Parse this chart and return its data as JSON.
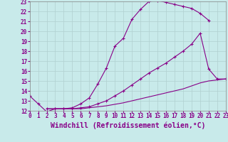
{
  "background_color": "#c8eaea",
  "grid_color": "#b0d0d0",
  "line_color": "#880088",
  "marker": "+",
  "xlabel": "Windchill (Refroidissement éolien,°C)",
  "xlabel_fontsize": 7,
  "tick_fontsize": 5.5,
  "xlim": [
    0,
    23
  ],
  "ylim": [
    12,
    23
  ],
  "xticks": [
    0,
    1,
    2,
    3,
    4,
    5,
    6,
    7,
    8,
    9,
    10,
    11,
    12,
    13,
    14,
    15,
    16,
    17,
    18,
    19,
    20,
    21,
    22,
    23
  ],
  "yticks": [
    12,
    13,
    14,
    15,
    16,
    17,
    18,
    19,
    20,
    21,
    22,
    23
  ],
  "curve1_x": [
    0,
    1,
    2,
    3,
    4,
    5,
    6,
    7,
    8,
    9,
    10,
    11,
    12,
    13,
    14,
    15,
    16,
    17,
    18,
    19,
    20,
    21
  ],
  "curve1_y": [
    13.5,
    12.7,
    11.9,
    12.2,
    12.2,
    12.3,
    12.7,
    13.3,
    14.7,
    16.3,
    18.5,
    19.3,
    21.2,
    22.2,
    23.0,
    23.1,
    22.9,
    22.7,
    22.5,
    22.3,
    21.8,
    21.1
  ],
  "curve2_x": [
    2,
    3,
    4,
    5,
    6,
    7,
    8,
    9,
    10,
    11,
    12,
    13,
    14,
    15,
    16,
    17,
    18,
    19,
    20,
    21,
    22,
    23
  ],
  "curve2_y": [
    12.2,
    12.2,
    12.2,
    12.2,
    12.3,
    12.4,
    12.7,
    13.0,
    13.5,
    14.0,
    14.6,
    15.2,
    15.8,
    16.3,
    16.8,
    17.4,
    18.0,
    18.7,
    19.8,
    16.2,
    15.2,
    15.2
  ],
  "curve3_x": [
    2,
    3,
    4,
    5,
    6,
    7,
    8,
    9,
    10,
    11,
    12,
    13,
    14,
    15,
    16,
    17,
    18,
    19,
    20,
    21,
    22,
    23
  ],
  "curve3_y": [
    12.2,
    12.2,
    12.2,
    12.2,
    12.2,
    12.3,
    12.4,
    12.5,
    12.65,
    12.8,
    13.0,
    13.2,
    13.4,
    13.6,
    13.8,
    14.0,
    14.2,
    14.5,
    14.8,
    15.0,
    15.1,
    15.2
  ]
}
